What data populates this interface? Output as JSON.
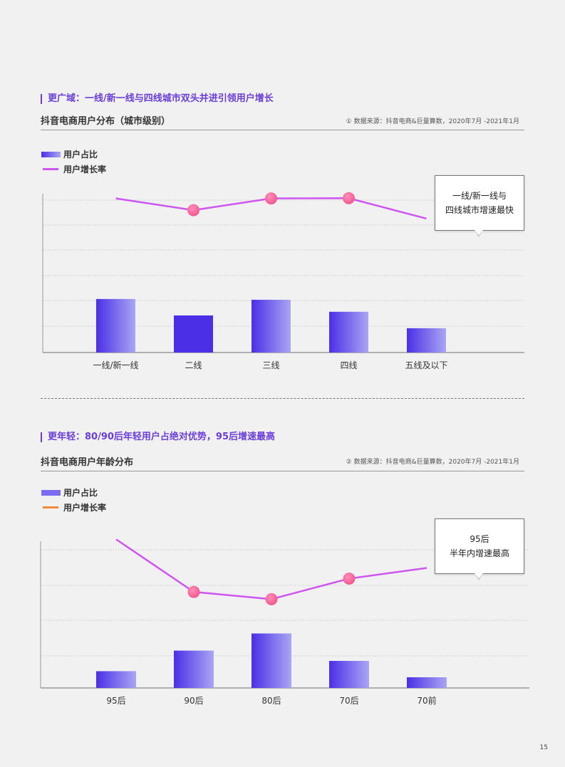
{
  "page_number": "15",
  "sections": [
    {
      "section_title": "更广域：一线/新一线与四线城市双头并进引领用户增长",
      "chart_title": "抖音电商用户分布（城市级别）",
      "source_icon": "circled-number-1-icon",
      "source": "① 数据来源：抖音电商&巨量算数，2020年7月 -2021年1月",
      "legend": {
        "bar": "用户占比",
        "line": "用户增长率"
      },
      "callout_lines": [
        "一线/新一线与",
        "四线城市增速最快"
      ],
      "colors": {
        "bar_start": "#4b2fe6",
        "bar_end": "#a9a6f4",
        "line": "#cf55f0",
        "marker": "#f2548e"
      }
    },
    {
      "section_title": "更年轻：80/90后年轻用户占绝对优势，95后增速最高",
      "chart_title": "抖音电商用户年龄分布",
      "source_icon": "circled-number-2-icon",
      "source": "② 数据来源：抖音电商&巨量算数，2020年7月 -2021年1月",
      "legend": {
        "bar": "用户占比",
        "line": "用户增长率"
      },
      "callout_lines": [
        "95后",
        "半年内增速最高"
      ],
      "colors": {
        "bar_start": "#4b2fe6",
        "bar_end": "#a9a6f4",
        "legend_bar": "#7b6cf2",
        "legend_line": "#f08a3a",
        "line": "#cf55f0",
        "marker": "#f2548e"
      }
    }
  ],
  "chart_data": [
    {
      "type": "bar",
      "categories": [
        "一线/新一线",
        "二线",
        "三线",
        "四线",
        "五线及以下"
      ],
      "series": [
        {
          "name": "用户占比",
          "type": "bar",
          "values": [
            20.5,
            14.2,
            20.2,
            15.6,
            9.3
          ]
        },
        {
          "name": "用户增长率",
          "type": "line",
          "values": [
            59,
            54.5,
            59,
            59.1,
            51.3
          ],
          "markers": [
            false,
            true,
            true,
            true,
            false
          ]
        }
      ],
      "ylim": [
        0,
        63
      ],
      "grid": true,
      "legend_position": "top-left"
    },
    {
      "type": "bar",
      "categories": [
        "95后",
        "90后",
        "80后",
        "70后",
        "70前"
      ],
      "series": [
        {
          "name": "用户占比",
          "type": "bar",
          "values": [
            4.4,
            9.8,
            14.3,
            7.1,
            2.8
          ]
        },
        {
          "name": "用户增长率",
          "type": "line",
          "values": [
            39,
            25.2,
            23.3,
            28.7,
            31.5
          ],
          "markers": [
            false,
            true,
            true,
            true,
            false
          ]
        }
      ],
      "ylim": [
        0,
        40
      ],
      "grid": true,
      "legend_position": "top-left"
    }
  ]
}
